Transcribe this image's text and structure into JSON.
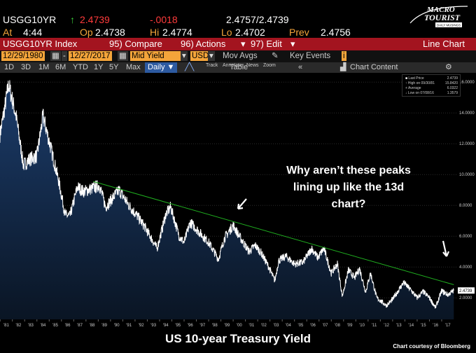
{
  "quote": {
    "ticker": "USGG10YR",
    "arrow": "↑",
    "last": "2.4739",
    "change": "-.0018",
    "bid_ask": "2.4757/2.4739",
    "at_label": "At",
    "time": "4:44",
    "op_label": "Op",
    "open": "2.4738",
    "hi_label": "Hi",
    "high": "2.4774",
    "lo_label": "Lo",
    "low": "2.4702",
    "prev_label": "Prev",
    "prev": "2.4756"
  },
  "menu": {
    "index": "USGG10YR Index",
    "compare": "95) Compare",
    "actions": "96) Actions",
    "edit": "97) Edit",
    "view": "Line Chart"
  },
  "controls": {
    "start": "12/29/1980",
    "end": "12/27/2017",
    "field": "Mid Yield",
    "currency": "USD",
    "mov_avgs": "Mov Avgs",
    "key_events": "Key Events"
  },
  "toolbar": {
    "ranges": [
      "1D",
      "3D",
      "1M",
      "6M",
      "YTD",
      "1Y",
      "5Y",
      "Max"
    ],
    "frequency": "Daily ▼",
    "table": "Table",
    "chart_content": "Chart Content",
    "track": "Track",
    "annotate": "Annotate",
    "news": "News",
    "zoom": "Zoom"
  },
  "legend": {
    "last_price_label": "Last Price",
    "last_price": "2.4739",
    "high_label": "High on 09/30/81",
    "high": "15.8420",
    "average_label": "Average",
    "average": "6.0322",
    "low_label": "Low on 07/08/16",
    "low": "1.3579"
  },
  "logo": {
    "line1": "MACRO",
    "line2": "TOURIST",
    "line3": "DAILY MUSINGS"
  },
  "annotation": "Why aren’t these peaks lining up like the 13d chart?",
  "title": "US 10-year Treasury Yield",
  "credit": "Chart courtesy of Bloomberg",
  "colors": {
    "amber": "#f4a43a",
    "red_bar": "#a3141f",
    "trend": "#1fae1f",
    "area_top": "#1c3d6c"
  },
  "chart_data": {
    "type": "area",
    "x": [
      1980.99,
      1981.7,
      1982.3,
      1982.9,
      1983.4,
      1984.0,
      1984.5,
      1985.2,
      1985.8,
      1986.3,
      1986.7,
      1987.3,
      1987.8,
      1988.5,
      1989.1,
      1989.6,
      1990.2,
      1990.7,
      1991.5,
      1992.2,
      1992.8,
      1993.8,
      1994.5,
      1994.9,
      1995.6,
      1996.0,
      1996.5,
      1997.3,
      1998.0,
      1998.8,
      1999.3,
      2000.0,
      2000.5,
      2001.3,
      2001.8,
      2002.3,
      2002.9,
      2003.4,
      2003.7,
      2004.3,
      2005.0,
      2005.7,
      2006.4,
      2006.9,
      2007.4,
      2008.0,
      2008.5,
      2008.9,
      2009.4,
      2009.9,
      2010.3,
      2010.8,
      2011.2,
      2011.7,
      2012.5,
      2013.0,
      2013.9,
      2014.5,
      2015.0,
      2015.5,
      2016.0,
      2016.5,
      2017.0,
      2017.5,
      2017.99
    ],
    "y": [
      12.6,
      15.84,
      13.8,
      10.6,
      11.0,
      11.2,
      13.8,
      11.5,
      9.5,
      7.4,
      7.3,
      9.2,
      8.9,
      9.1,
      9.3,
      7.9,
      8.5,
      9.0,
      8.0,
      7.3,
      6.6,
      5.2,
      7.4,
      7.9,
      6.0,
      5.6,
      6.9,
      6.2,
      5.6,
      4.5,
      5.9,
      6.7,
      6.0,
      5.0,
      5.4,
      4.9,
      4.0,
      3.1,
      4.4,
      4.7,
      4.2,
      4.3,
      5.2,
      4.6,
      5.2,
      3.6,
      4.2,
      2.1,
      3.8,
      3.3,
      3.9,
      2.4,
      3.6,
      2.0,
      1.5,
      1.9,
      3.0,
      2.5,
      2.0,
      2.4,
      2.0,
      1.36,
      2.45,
      2.2,
      2.4739
    ],
    "trendline": {
      "x": [
        1988.6,
        2017.99
      ],
      "y": [
        9.55,
        2.85
      ]
    },
    "x_tick_labels": [
      "'81",
      "'82",
      "'83",
      "'84",
      "'85",
      "'86",
      "'87",
      "'88",
      "'89",
      "'90",
      "'91",
      "'92",
      "'93",
      "'94",
      "'95",
      "'96",
      "'97",
      "'98",
      "'99",
      "'00",
      "'01",
      "'02",
      "'03",
      "'04",
      "'05",
      "'06",
      "'07",
      "'08",
      "'09",
      "'10",
      "'11",
      "'12",
      "'13",
      "'14",
      "'15",
      "'16",
      "'17"
    ],
    "y_ticks": [
      "2.0000",
      "4.0000",
      "6.0000",
      "8.0000",
      "10.0000",
      "12.0000",
      "14.0000",
      "16.0000"
    ],
    "xlim": [
      1980.99,
      2018.2
    ],
    "ylim": [
      0.6,
      16.6
    ],
    "last_value_label": "2.4739"
  }
}
